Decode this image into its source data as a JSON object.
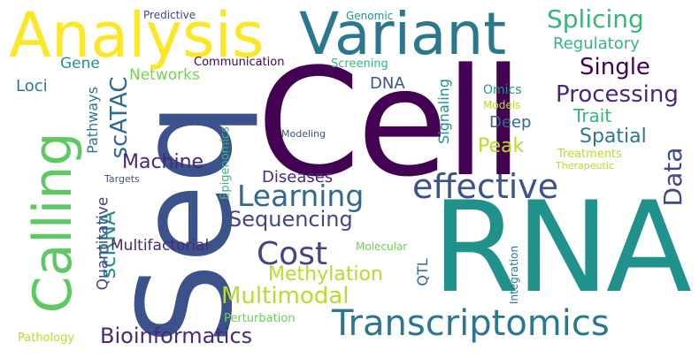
{
  "words": {
    "cell": {
      "text": "Cell",
      "color": "#440154"
    },
    "seq": {
      "text": "Seq",
      "color": "#3b528b"
    },
    "rna": {
      "text": "RNA",
      "color": "#21918c"
    },
    "analysis": {
      "text": "Analysis",
      "color": "#fde725"
    },
    "variant": {
      "text": "Variant",
      "color": "#2a788e"
    },
    "calling": {
      "text": "Calling",
      "color": "#5ec962"
    },
    "transcriptomics": {
      "text": "Transcriptomics",
      "color": "#2a788e"
    },
    "effective": {
      "text": "effective",
      "color": "#3b528b"
    },
    "learning": {
      "text": "Learning",
      "color": "#31688e"
    },
    "cost": {
      "text": "Cost",
      "color": "#414487"
    },
    "bioinformatics": {
      "text": "Bioinformatics",
      "color": "#482878"
    },
    "multimodal": {
      "text": "Multimodal",
      "color": "#b5de2b"
    },
    "sequencing": {
      "text": "Sequencing",
      "color": "#3e4989"
    },
    "splicing": {
      "text": "Splicing",
      "color": "#35b779"
    },
    "single": {
      "text": "Single",
      "color": "#440154"
    },
    "processing": {
      "text": "Processing",
      "color": "#482878"
    },
    "data": {
      "text": "Data",
      "color": "#3e4989"
    },
    "scatac": {
      "text": "scATAC",
      "color": "#31688e"
    },
    "machine": {
      "text": "Machine",
      "color": "#482878"
    },
    "methylation": {
      "text": "Methylation",
      "color": "#b5de2b"
    },
    "peak": {
      "text": "Peak",
      "color": "#b5de2b"
    },
    "spatial": {
      "text": "Spatial",
      "color": "#2a788e"
    },
    "deep": {
      "text": "Deep",
      "color": "#31688e"
    },
    "trait": {
      "text": "Trait",
      "color": "#35b779"
    },
    "scrna": {
      "text": "scRNA",
      "color": "#21918c"
    },
    "regulatory": {
      "text": "Regulatory",
      "color": "#35b779"
    },
    "dna": {
      "text": "DNA",
      "color": "#3b528b"
    },
    "diseases": {
      "text": "Diseases",
      "color": "#472d7b"
    },
    "multifactorial": {
      "text": "Multifactorial",
      "color": "#482878"
    },
    "quantitative": {
      "text": "Quantitative",
      "color": "#414487"
    },
    "gene": {
      "text": "Gene",
      "color": "#21918c"
    },
    "loci": {
      "text": "Loci",
      "color": "#2a788e"
    },
    "networks": {
      "text": "Networks",
      "color": "#7ad151"
    },
    "qtl": {
      "text": "QTL",
      "color": "#31688e"
    },
    "pathways": {
      "text": "Pathways",
      "color": "#2a788e"
    },
    "signaling": {
      "text": "Signaling",
      "color": "#21918c"
    },
    "omics": {
      "text": "Omics",
      "color": "#21918c"
    },
    "models": {
      "text": "Models",
      "color": "#b5de2b"
    },
    "communication": {
      "text": "Communication",
      "color": "#440154"
    },
    "screening": {
      "text": "Screening",
      "color": "#35b779"
    },
    "genomic": {
      "text": "Genomic",
      "color": "#21918c"
    },
    "predictive": {
      "text": "Predictive",
      "color": "#3e4989"
    },
    "epigenomics": {
      "text": "Epigenomics",
      "color": "#35b779"
    },
    "modeling": {
      "text": "Modeling",
      "color": "#3b528b"
    },
    "treatments": {
      "text": "Treatments",
      "color": "#b5de2b"
    },
    "therapeutic": {
      "text": "Therapeutic",
      "color": "#b5de2b"
    },
    "targets": {
      "text": "Targets",
      "color": "#3b528b"
    },
    "molecular": {
      "text": "Molecular",
      "color": "#6ece58"
    },
    "integration": {
      "text": "Integration",
      "color": "#2a788e"
    },
    "perturbation": {
      "text": "Perturbation",
      "color": "#6ece58"
    },
    "pathology": {
      "text": "Pathology",
      "color": "#b5de2b"
    }
  }
}
